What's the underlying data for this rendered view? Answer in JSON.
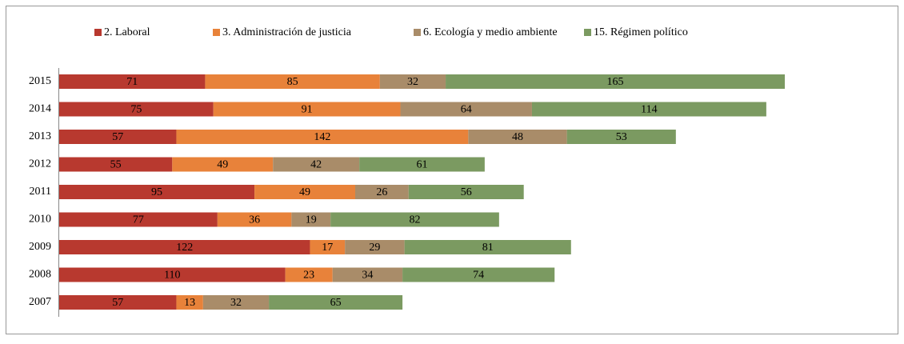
{
  "chart_data": {
    "type": "stacked_barh",
    "categories": [
      "2015",
      "2014",
      "2013",
      "2012",
      "2011",
      "2010",
      "2009",
      "2008",
      "2007"
    ],
    "series": [
      {
        "name": "2. Laboral",
        "color": "#b8392f",
        "values": [
          71,
          75,
          57,
          55,
          95,
          77,
          122,
          110,
          57
        ]
      },
      {
        "name": "3. Administración de justicia",
        "color": "#e8823a",
        "values": [
          85,
          91,
          142,
          49,
          49,
          36,
          17,
          23,
          13
        ]
      },
      {
        "name": "6. Ecología y medio ambiente",
        "color": "#a98c69",
        "values": [
          32,
          64,
          48,
          42,
          26,
          19,
          29,
          34,
          32
        ]
      },
      {
        "name": "15. Régimen político",
        "color": "#7b9a61",
        "values": [
          165,
          114,
          53,
          61,
          56,
          82,
          81,
          74,
          65
        ]
      }
    ],
    "legend": "top"
  }
}
